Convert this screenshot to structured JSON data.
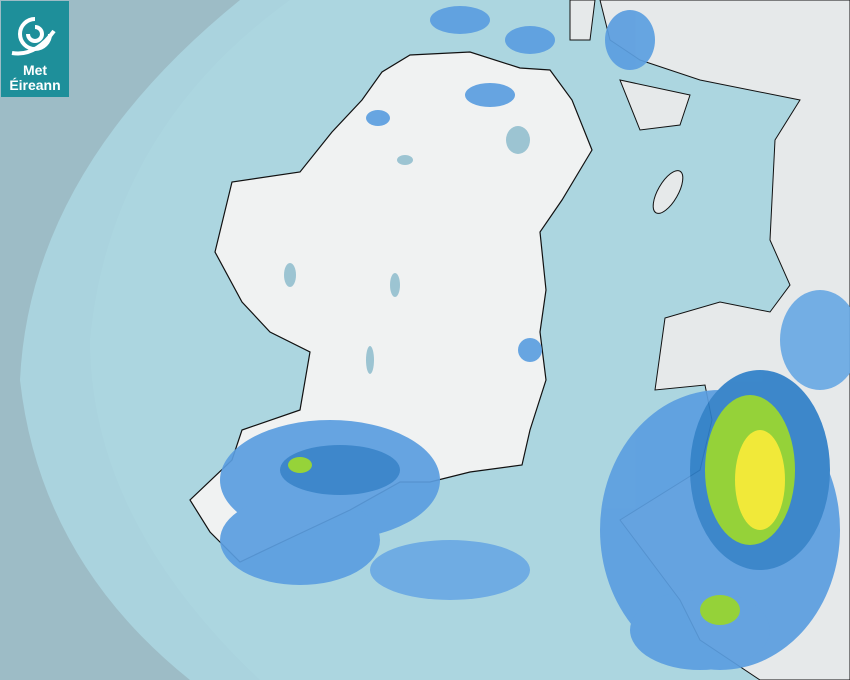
{
  "logo": {
    "line1": "Met",
    "line2": "Éireann",
    "icon": "swirl-logo-icon"
  },
  "colors": {
    "outside_coverage": "#9dbcc6",
    "sea": "#aad3de",
    "land": "#f0f2f2",
    "rain_light": "#5b9ee0",
    "rain_moderate": "#2f7fc8",
    "rain_heavy": "#8fd12a",
    "rain_very_heavy": "#f2ea2a",
    "logo_bg": "#1e8f9a"
  }
}
